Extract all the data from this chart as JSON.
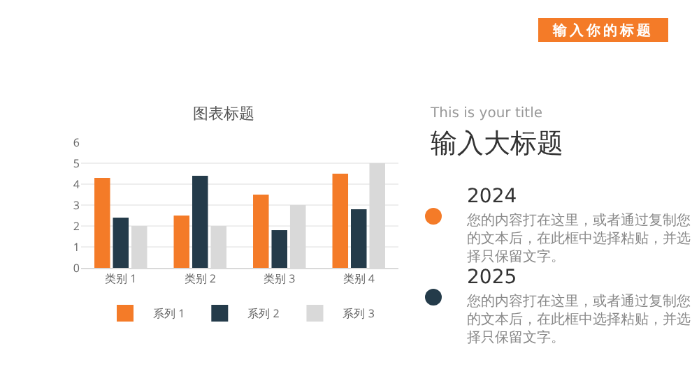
{
  "chart_data": [
    {
      "type": "bar",
      "title": "图表标题",
      "categories": [
        "类别 1",
        "类别 2",
        "类别 3",
        "类别 4"
      ],
      "series": [
        {
          "name": "系列 1",
          "color": "#f47b28",
          "values": [
            4.3,
            2.5,
            3.5,
            4.5
          ]
        },
        {
          "name": "系列 2",
          "color": "#243b4a",
          "values": [
            2.4,
            4.4,
            1.8,
            2.8
          ]
        },
        {
          "name": "系列 3",
          "color": "#d9d9d9",
          "values": [
            2,
            2,
            3,
            5
          ]
        }
      ],
      "ylim": [
        0,
        6
      ],
      "yticks": [
        0,
        1,
        2,
        3,
        4,
        5,
        6
      ],
      "grid": "y",
      "legend": "bottom"
    },
    {
      "type": "other",
      "subtitle": "This is your title",
      "title": "输入大标题",
      "annotations": [
        "输入你的标题",
        "2024",
        "您的内容打在这里，或者通过复制您的文本后，在此框中选择粘贴，并选择只保留文字。",
        "2025",
        "您的内容打在这里，或者通过复制您的文本后，在此框中选择粘贴，并选择只保留文字。"
      ]
    }
  ]
}
